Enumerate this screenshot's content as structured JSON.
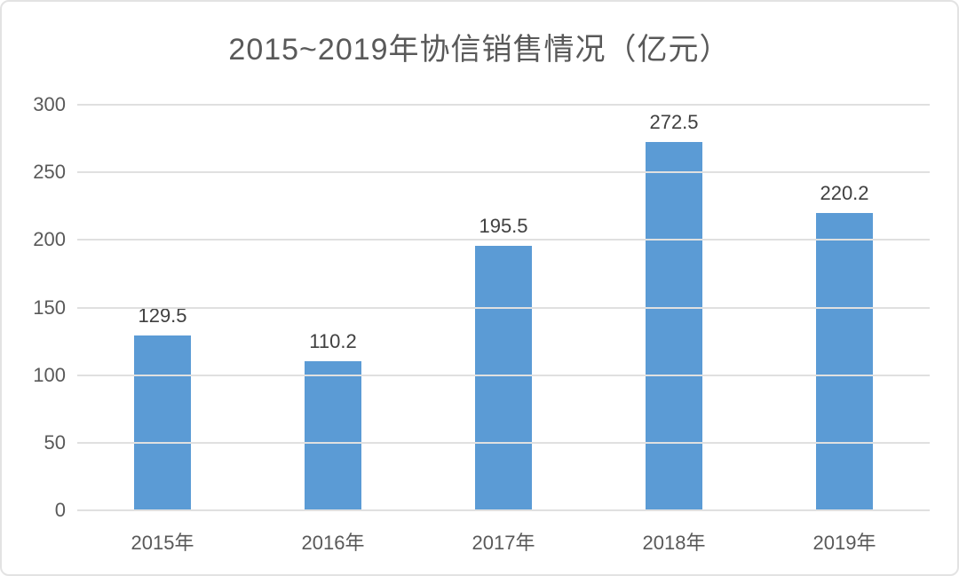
{
  "chart_data": {
    "type": "bar",
    "title": "2015~2019年协信销售情况（亿元）",
    "categories": [
      "2015年",
      "2016年",
      "2017年",
      "2018年",
      "2019年"
    ],
    "values": [
      129.5,
      110.2,
      195.5,
      272.5,
      220.2
    ],
    "value_labels": [
      "129.5",
      "110.2",
      "195.5",
      "272.5",
      "220.2"
    ],
    "xlabel": "",
    "ylabel": "",
    "ylim": [
      0,
      300
    ],
    "yticks": [
      0,
      50,
      100,
      150,
      200,
      250,
      300
    ],
    "legend_position": "none",
    "grid": "horizontal",
    "bar_color": "#5b9bd5",
    "gridline_color": "#e0e0e0",
    "title_color": "#595959",
    "axis_text_color": "#595959",
    "data_label_color": "#404040"
  }
}
